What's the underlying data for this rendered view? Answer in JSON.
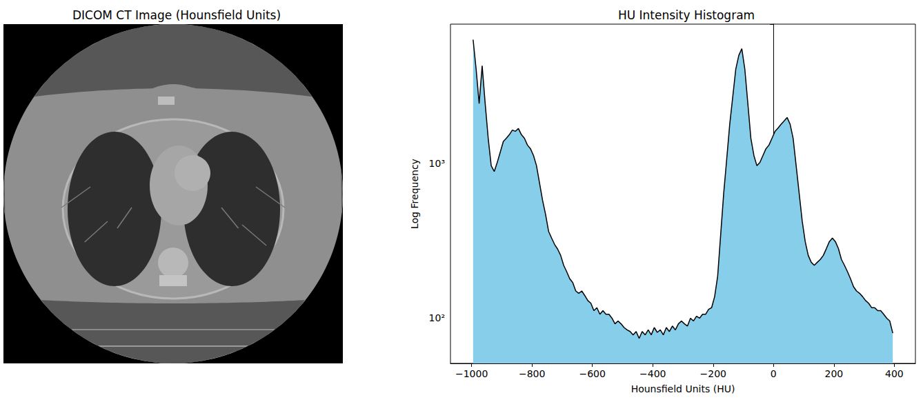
{
  "chart_data": [
    {
      "type": "image",
      "title": "DICOM CT Image (Hounsfield Units)"
    },
    {
      "type": "histogram",
      "title": "HU Intensity Histogram",
      "x_label": "Hounsfield Units (HU)",
      "y_label": "Log Frequency",
      "bins": [
        -1000,
        -990,
        -980,
        -970,
        -960,
        -950,
        -940,
        -930,
        -920,
        -910,
        -900,
        -890,
        -880,
        -870,
        -860,
        -850,
        -840,
        -830,
        -820,
        -810,
        -800,
        -790,
        -780,
        -770,
        -760,
        -750,
        -740,
        -730,
        -720,
        -710,
        -700,
        -690,
        -680,
        -670,
        -660,
        -650,
        -640,
        -630,
        -620,
        -610,
        -600,
        -590,
        -580,
        -570,
        -560,
        -550,
        -540,
        -530,
        -520,
        -510,
        -500,
        -490,
        -480,
        -470,
        -460,
        -450,
        -440,
        -430,
        -420,
        -410,
        -400,
        -390,
        -380,
        -370,
        -360,
        -350,
        -340,
        -330,
        -320,
        -310,
        -300,
        -290,
        -280,
        -270,
        -260,
        -250,
        -240,
        -230,
        -220,
        -210,
        -200,
        -190,
        -180,
        -170,
        -160,
        -150,
        -140,
        -130,
        -120,
        -110,
        -100,
        -90,
        -80,
        -70,
        -60,
        -50,
        -40,
        -30,
        -20,
        -10,
        0,
        10,
        20,
        30,
        40,
        50,
        60,
        70,
        80,
        90,
        100,
        110,
        120,
        130,
        140,
        150,
        160,
        170,
        180,
        190,
        200,
        210,
        220,
        230,
        240,
        250,
        260,
        270,
        280,
        290,
        300,
        310,
        320,
        330,
        340,
        350,
        360,
        370,
        380,
        390,
        400
      ],
      "counts": [
        6350,
        4090,
        2450,
        4300,
        2450,
        1460,
        970,
        890,
        1020,
        1190,
        1390,
        1460,
        1540,
        1650,
        1620,
        1690,
        1540,
        1460,
        1320,
        1250,
        1130,
        970,
        750,
        580,
        470,
        365,
        330,
        300,
        280,
        255,
        220,
        200,
        180,
        170,
        150,
        145,
        150,
        140,
        130,
        125,
        112,
        117,
        106,
        112,
        106,
        106,
        100,
        92,
        96,
        92,
        87,
        84,
        82,
        78,
        82,
        74,
        82,
        78,
        84,
        78,
        87,
        81,
        84,
        78,
        87,
        82,
        89,
        84,
        92,
        96,
        92,
        89,
        100,
        96,
        103,
        100,
        106,
        106,
        114,
        117,
        138,
        187,
        347,
        643,
        1070,
        1800,
        2710,
        4090,
        5020,
        5550,
        4090,
        2450,
        1460,
        1130,
        970,
        1020,
        1130,
        1250,
        1320,
        1460,
        1620,
        1700,
        1800,
        1890,
        1990,
        1800,
        1460,
        970,
        643,
        426,
        313,
        255,
        230,
        220,
        230,
        240,
        255,
        282,
        313,
        330,
        313,
        282,
        240,
        220,
        200,
        180,
        160,
        150,
        145,
        138,
        130,
        125,
        117,
        117,
        112,
        112,
        106,
        100,
        96,
        80
      ],
      "color": "#87ceeb",
      "xlim": [
        -1070,
        470
      ],
      "xticks": [
        {
          "value": -1000,
          "label": "−1000"
        },
        {
          "value": -800,
          "label": "−800"
        },
        {
          "value": -600,
          "label": "−600"
        },
        {
          "value": -400,
          "label": "−400"
        },
        {
          "value": -200,
          "label": "−200"
        },
        0,
        200,
        400
      ],
      "ylim": [
        51,
        8000
      ],
      "yticks": [
        {
          "value": 100,
          "label": "10²"
        },
        {
          "value": 1000,
          "label": "10³"
        }
      ],
      "log": "y",
      "grid": false
    }
  ]
}
